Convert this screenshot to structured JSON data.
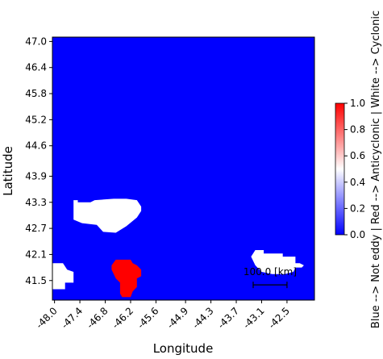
{
  "chart_data": {
    "type": "heatmap",
    "xlabel": "Longitude",
    "ylabel": "Latitude",
    "xlim": [
      -48.05,
      -41.85
    ],
    "ylim": [
      41.05,
      47.1
    ],
    "x_ticks": [
      "-48.0",
      "-47.4",
      "-46.8",
      "-46.2",
      "-45.6",
      "-44.9",
      "-44.3",
      "-43.7",
      "-43.1",
      "-42.5"
    ],
    "y_ticks": [
      "47.0",
      "46.4",
      "45.8",
      "45.2",
      "44.6",
      "43.9",
      "43.3",
      "42.7",
      "42.1",
      "41.5"
    ],
    "x_tick_values": [
      -48.0,
      -47.4,
      -46.8,
      -46.2,
      -45.6,
      -44.9,
      -44.3,
      -43.7,
      -43.1,
      -42.5
    ],
    "y_tick_values": [
      47.0,
      46.4,
      45.8,
      45.2,
      44.6,
      43.9,
      43.3,
      42.7,
      42.1,
      41.5
    ],
    "background": {
      "label": "Not eddy",
      "value": 0.0,
      "color": "#0000ff"
    },
    "regions": [
      {
        "label": "Cyclonic",
        "value": 0.5,
        "color": "#ffffff",
        "outline": [
          [
            -47.55,
            43.35
          ],
          [
            -47.45,
            43.35
          ],
          [
            -47.45,
            43.3
          ],
          [
            -47.15,
            43.3
          ],
          [
            -47.05,
            43.35
          ],
          [
            -46.6,
            43.38
          ],
          [
            -46.3,
            43.38
          ],
          [
            -46.05,
            43.35
          ],
          [
            -45.95,
            43.2
          ],
          [
            -45.95,
            43.1
          ],
          [
            -46.05,
            42.95
          ],
          [
            -46.3,
            42.75
          ],
          [
            -46.55,
            42.6
          ],
          [
            -46.85,
            42.62
          ],
          [
            -47.0,
            42.78
          ],
          [
            -47.35,
            42.82
          ],
          [
            -47.55,
            42.9
          ]
        ]
      },
      {
        "label": "Cyclonic",
        "value": 0.5,
        "color": "#ffffff",
        "outline": [
          [
            -48.05,
            41.9
          ],
          [
            -47.8,
            41.9
          ],
          [
            -47.7,
            41.75
          ],
          [
            -47.55,
            41.7
          ],
          [
            -47.55,
            41.45
          ],
          [
            -47.75,
            41.45
          ],
          [
            -47.75,
            41.3
          ],
          [
            -48.05,
            41.3
          ]
        ]
      },
      {
        "label": "Cyclonic",
        "value": 0.5,
        "color": "#ffffff",
        "outline": [
          [
            -43.25,
            42.2
          ],
          [
            -43.05,
            42.2
          ],
          [
            -43.05,
            42.12
          ],
          [
            -42.6,
            42.12
          ],
          [
            -42.6,
            42.05
          ],
          [
            -42.3,
            42.05
          ],
          [
            -42.3,
            41.9
          ],
          [
            -42.2,
            41.9
          ],
          [
            -42.1,
            41.85
          ],
          [
            -42.15,
            41.8
          ],
          [
            -42.3,
            41.8
          ],
          [
            -42.35,
            41.7
          ],
          [
            -42.55,
            41.65
          ],
          [
            -42.85,
            41.65
          ],
          [
            -43.1,
            41.7
          ],
          [
            -43.25,
            41.85
          ],
          [
            -43.35,
            42.05
          ]
        ]
      },
      {
        "label": "Anticyclonic",
        "value": 1.0,
        "color": "#ff0000",
        "outline": [
          [
            -46.55,
            41.98
          ],
          [
            -46.2,
            41.98
          ],
          [
            -46.15,
            41.9
          ],
          [
            -46.05,
            41.85
          ],
          [
            -45.95,
            41.75
          ],
          [
            -45.95,
            41.6
          ],
          [
            -46.05,
            41.55
          ],
          [
            -46.05,
            41.35
          ],
          [
            -46.15,
            41.25
          ],
          [
            -46.2,
            41.12
          ],
          [
            -46.4,
            41.12
          ],
          [
            -46.45,
            41.2
          ],
          [
            -46.45,
            41.45
          ],
          [
            -46.55,
            41.55
          ],
          [
            -46.65,
            41.75
          ],
          [
            -46.65,
            41.85
          ]
        ]
      }
    ],
    "colorbar": {
      "range": [
        0.0,
        1.0
      ],
      "ticks": [
        "0.0",
        "0.2",
        "0.4",
        "0.6",
        "0.8",
        "1.0"
      ],
      "tick_values": [
        0.0,
        0.2,
        0.4,
        0.6,
        0.8,
        1.0
      ],
      "stops": [
        "#0000ff",
        "#ffffff",
        "#ff0000"
      ],
      "label": "Blue --> Not eddy | Red --> Anticyclonic | White --> Cyclonic"
    },
    "scale_bar": {
      "label": "100.0 [km]",
      "lon_start": -43.3,
      "lon_end": -42.5,
      "lat": 41.4
    }
  }
}
